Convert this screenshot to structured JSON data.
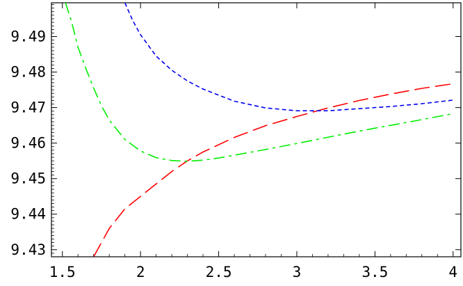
{
  "chart_data": {
    "type": "line",
    "title": "",
    "xlabel": "",
    "ylabel": "",
    "xlim": [
      1.43,
      4.05
    ],
    "ylim": [
      9.428,
      9.4995
    ],
    "x_ticks": [
      1.5,
      2,
      2.5,
      3,
      3.5,
      4
    ],
    "x_tick_labels": [
      "1.5",
      "2",
      "2.5",
      "3",
      "3.5",
      "4"
    ],
    "y_ticks": [
      9.43,
      9.44,
      9.45,
      9.46,
      9.47,
      9.48,
      9.49
    ],
    "y_tick_labels": [
      "9.43",
      "9.44",
      "9.45",
      "9.46",
      "9.47",
      "9.48",
      "9.49"
    ],
    "grid": false,
    "series": [
      {
        "color": "#ff0000",
        "dash": "long-dash",
        "x": [
          1.7,
          1.8,
          1.9,
          2.0,
          2.1,
          2.2,
          2.3,
          2.4,
          2.6,
          2.8,
          3.0,
          3.2,
          3.4,
          3.6,
          3.8,
          4.0
        ],
        "y": [
          9.428,
          9.436,
          9.4415,
          9.445,
          9.4485,
          9.452,
          9.455,
          9.4575,
          9.4616,
          9.4649,
          9.4675,
          9.4699,
          9.472,
          9.4738,
          9.4754,
          9.4767
        ]
      },
      {
        "color": "#00ee00",
        "dash": "dash-dot",
        "x": [
          1.52,
          1.56,
          1.6,
          1.65,
          1.7,
          1.75,
          1.8,
          1.9,
          2.0,
          2.1,
          2.2,
          2.3,
          2.4,
          2.5,
          2.75,
          3.0,
          3.25,
          3.5,
          3.75,
          4.0
        ],
        "y": [
          9.4995,
          9.494,
          9.487,
          9.481,
          9.4755,
          9.4705,
          9.4665,
          9.461,
          9.4578,
          9.4559,
          9.4551,
          9.4549,
          9.4552,
          9.4558,
          9.4578,
          9.4599,
          9.4621,
          9.4642,
          9.4662,
          9.4683
        ]
      },
      {
        "color": "#0000ee",
        "dash": "short-dash",
        "x": [
          1.9,
          1.95,
          2.0,
          2.1,
          2.2,
          2.3,
          2.4,
          2.6,
          2.8,
          3.0,
          3.2,
          3.4,
          3.6,
          3.8,
          4.0
        ],
        "y": [
          9.4995,
          9.4945,
          9.4905,
          9.4845,
          9.4805,
          9.4775,
          9.4752,
          9.4718,
          9.4699,
          9.4691,
          9.4691,
          9.4697,
          9.4703,
          9.4711,
          9.4721
        ]
      }
    ]
  }
}
